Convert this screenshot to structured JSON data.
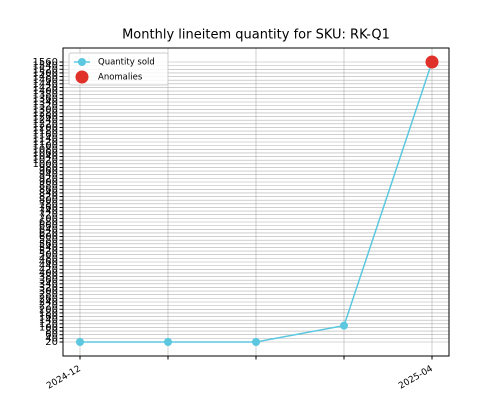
{
  "chart_data": {
    "type": "line",
    "title": "Monthly lineitem quantity for SKU: RK-Q1",
    "categories": [
      "2024-12",
      null,
      null,
      null,
      "2025-04"
    ],
    "series": [
      {
        "name": "Quantity sold",
        "color": "#5bc8e0",
        "values": [
          20,
          20,
          20,
          110,
          1560
        ]
      },
      {
        "name": "Anomalies",
        "color": "#e0302a",
        "values": [
          null,
          null,
          null,
          null,
          1560
        ]
      }
    ],
    "ylim": [
      -57,
      1637
    ],
    "yticks": [
      20,
      40,
      60,
      80,
      100,
      120,
      140,
      160,
      180,
      200,
      220,
      240,
      260,
      280,
      300,
      320,
      340,
      360,
      380,
      400,
      420,
      440,
      460,
      480,
      500,
      520,
      540,
      560,
      580,
      600,
      620,
      640,
      660,
      680,
      700,
      720,
      740,
      760,
      780,
      800,
      820,
      840,
      860,
      880,
      900,
      920,
      940,
      960,
      980,
      1000,
      1020,
      1040,
      1060,
      1080,
      1100,
      1120,
      1140,
      1160,
      1180,
      1200,
      1220,
      1240,
      1260,
      1280,
      1300,
      1320,
      1340,
      1360,
      1380,
      1400,
      1420,
      1440,
      1460,
      1480,
      1500,
      1520,
      1540,
      1560
    ],
    "grid": true,
    "legend": "upper left"
  }
}
